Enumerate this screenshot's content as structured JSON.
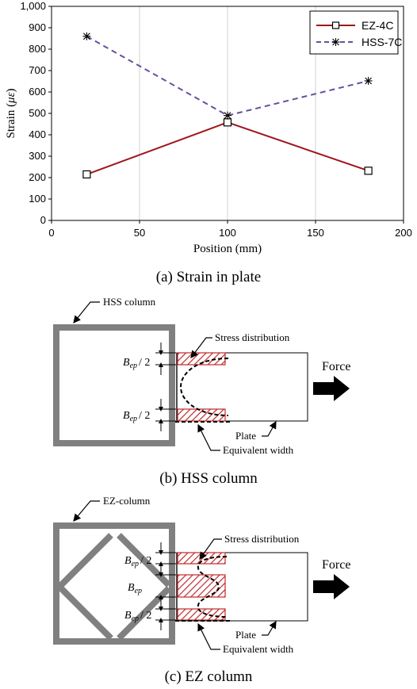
{
  "chart_data": {
    "type": "line",
    "title": "",
    "xlabel": "Position (mm)",
    "ylabel": "Strain (με)",
    "ylabel_prefix": "Strain (",
    "ylabel_unit": "με",
    "ylabel_suffix": ")",
    "xlim": [
      0,
      200
    ],
    "ylim": [
      0,
      1000
    ],
    "xticks": [
      0,
      50,
      100,
      150,
      200
    ],
    "yticks": [
      0,
      100,
      200,
      300,
      400,
      500,
      600,
      700,
      800,
      900,
      1000
    ],
    "xtick_labels": [
      "0",
      "50",
      "100",
      "150",
      "200"
    ],
    "ytick_labels": [
      "0",
      "100",
      "200",
      "300",
      "400",
      "500",
      "600",
      "700",
      "800",
      "900",
      "1,000"
    ],
    "grid": "vertical",
    "legend_position": "top-right",
    "series": [
      {
        "name": "EZ-4C",
        "color": "#a0151c",
        "dash": "solid",
        "marker": "square",
        "x": [
          20,
          100,
          180
        ],
        "values": [
          215,
          458,
          232
        ]
      },
      {
        "name": "HSS-7C",
        "color": "#6a4ea0",
        "dash": "dashed",
        "marker": "asterisk",
        "x": [
          20,
          100,
          180
        ],
        "values": [
          860,
          490,
          652
        ]
      }
    ]
  },
  "captions": {
    "a": "(a) Strain in plate",
    "b": "(b) HSS column",
    "c": "(c) EZ column"
  },
  "diagram_b": {
    "column_label": "HSS column",
    "stress_label": "Stress distribution",
    "force_label": "Force",
    "plate_label": "Plate",
    "equiv_label": "Equivalent width",
    "bep_top": "/ 2",
    "bep_bottom": "/ 2"
  },
  "diagram_c": {
    "column_label": "EZ-column",
    "stress_label": "Stress distribution",
    "force_label": "Force",
    "plate_label": "Plate",
    "equiv_label": "Equivalent width",
    "bep_top": "/ 2",
    "bep_mid": "",
    "bep_bottom": "/ 2"
  },
  "bep_symbol": "B",
  "bep_subscript": "ep",
  "colors": {
    "column": "#808080",
    "hatch": "#c0282d",
    "ez_line": "#a0151c",
    "hss_line": "#6a4ea0"
  }
}
